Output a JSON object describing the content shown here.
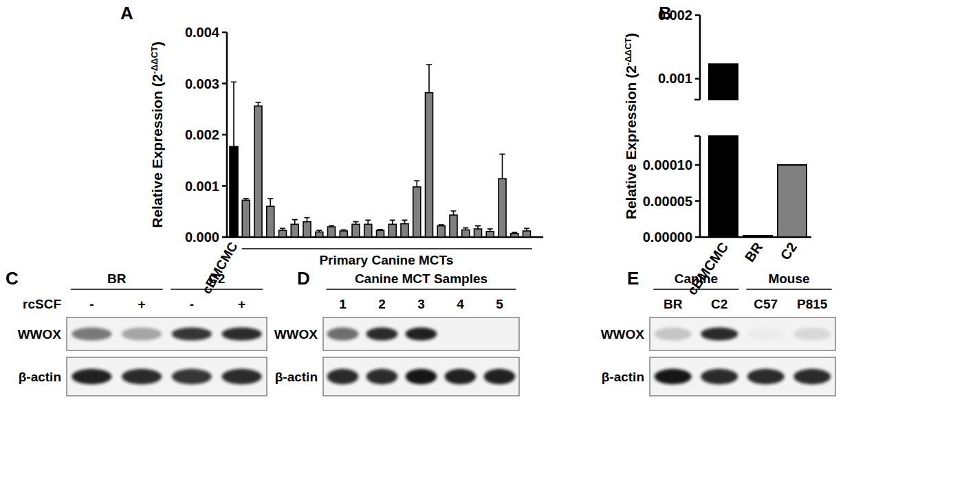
{
  "chart_data": [
    {
      "type": "bar",
      "title": "A",
      "y_label": "Relative  Expression (2",
      "y_label_superscript": "-ΔΔCT",
      "y_label_end": ")",
      "categories": [
        "cBMCMC",
        null,
        null,
        null,
        null,
        null,
        null,
        null,
        null,
        null,
        null,
        null,
        null,
        null,
        null,
        null,
        null,
        null,
        null,
        null,
        null,
        null,
        null,
        null,
        null
      ],
      "group_label": "Primary Canine MCTs",
      "series": [
        {
          "values": [
            0.00177,
            0.00072,
            0.00256,
            0.0006,
            0.00013,
            0.00025,
            0.0003,
            0.0001,
            0.0002,
            0.00012,
            0.00025,
            0.00025,
            0.00013,
            0.00025,
            0.00026,
            0.00098,
            0.00282,
            0.00022,
            0.00043,
            0.00014,
            0.00016,
            0.00011,
            0.00114,
            7e-05,
            0.00012
          ],
          "errors": [
            0.00126,
            3e-05,
            7e-05,
            0.00015,
            4e-05,
            9e-05,
            8e-05,
            3e-05,
            2e-05,
            2e-05,
            5e-05,
            8e-05,
            2e-05,
            8e-05,
            7e-05,
            0.00012,
            0.00055,
            2e-05,
            8e-05,
            4e-05,
            6e-05,
            5e-05,
            0.00048,
            2e-05,
            5e-05
          ],
          "colors": [
            "#000000",
            "#808080",
            "#808080",
            "#808080",
            "#808080",
            "#808080",
            "#808080",
            "#808080",
            "#808080",
            "#808080",
            "#808080",
            "#808080",
            "#808080",
            "#808080",
            "#808080",
            "#808080",
            "#808080",
            "#808080",
            "#808080",
            "#808080",
            "#808080",
            "#808080",
            "#808080",
            "#808080",
            "#808080"
          ]
        }
      ],
      "ylim": [
        0,
        0.004
      ],
      "yticks": [
        {
          "value": 0,
          "label": "0.000"
        },
        0.001,
        0.002,
        0.003,
        0.004
      ]
    },
    {
      "type": "bar",
      "title": "B",
      "y_label": "Relative  Expression (2",
      "y_label_superscript": "-ΔΔCT",
      "y_label_end": ")",
      "categories": [
        "cBMCMC",
        "BR",
        "C2"
      ],
      "series": [
        {
          "values": [
            0.00123,
            2e-06,
            0.0001
          ],
          "colors": [
            "#000000",
            "#808080",
            "#808080"
          ]
        }
      ],
      "ylim": [
        0,
        0.002
      ],
      "y_break": [
        0.00014,
        0.00067
      ],
      "yticks": [
        {
          "value": 0,
          "label": "0.00000"
        },
        5e-05,
        {
          "value": 0.0001,
          "label": "0.00010"
        },
        0.001,
        0.002
      ]
    }
  ],
  "blots": [
    {
      "title": "C",
      "groups": [
        {
          "label": "BR",
          "lanes": [
            "-",
            "+"
          ]
        },
        {
          "label": "C2",
          "lanes": [
            "-",
            "+"
          ]
        }
      ],
      "lane_row_label": "rcSCF",
      "rows": [
        {
          "label": "WWOX",
          "bands": [
            0.55,
            0.35,
            0.85,
            0.9
          ]
        },
        {
          "label": "β-actin",
          "bands": [
            0.95,
            0.9,
            0.85,
            0.9
          ]
        }
      ]
    },
    {
      "title": "D",
      "groups": [
        {
          "label": "Canine MCT Samples",
          "lanes": [
            "1",
            "2",
            "3",
            "4",
            "5"
          ]
        }
      ],
      "rows": [
        {
          "label": "WWOX",
          "bands": [
            0.6,
            0.9,
            0.95,
            0,
            0
          ]
        },
        {
          "label": "β-actin",
          "bands": [
            0.9,
            0.9,
            1,
            0.95,
            0.95
          ]
        }
      ]
    },
    {
      "title": "E",
      "groups": [
        {
          "label": "Canine",
          "lanes": [
            "BR",
            "C2"
          ]
        },
        {
          "label": "Mouse",
          "lanes": [
            "C57",
            "P815"
          ]
        }
      ],
      "rows": [
        {
          "label": "WWOX",
          "bands": [
            0.2,
            0.9,
            0.03,
            0.12
          ]
        },
        {
          "label": "β-actin",
          "bands": [
            1,
            0.9,
            0.9,
            0.9
          ]
        }
      ]
    }
  ]
}
